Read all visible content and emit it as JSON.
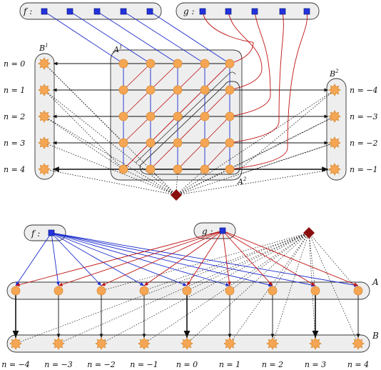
{
  "top_diagram": {
    "f_label": "f :",
    "g_label": "g :",
    "A1_label": "A",
    "A1_sup": "1",
    "A2_label": "A",
    "A2_sup": "2",
    "B1_label": "B",
    "B1_sup": "1",
    "B2_label": "B",
    "B2_sup": "2",
    "left_labels": [
      "n = 0",
      "n = 1",
      "n = 2",
      "n = 3",
      "n = 4"
    ],
    "right_labels": [
      "n = −4",
      "n = −3",
      "n = −2",
      "n = −1"
    ]
  },
  "bottom_diagram": {
    "f_label": "f :",
    "g_label": "g :",
    "A_label": "A",
    "B_label": "B",
    "n_labels": [
      "n = −4",
      "n = −3",
      "n = −2",
      "n = −1",
      "n = 0",
      "n = 1",
      "n = 2",
      "n = 3",
      "n = 4"
    ]
  },
  "colors": {
    "f_line": "#1a2bcc",
    "g_line": "#c01010",
    "node_fill": "#f5a654",
    "node_stroke": "#d98a30",
    "square_fill": "#2233dd",
    "diamond_fill": "#8b0e0e",
    "box_fill": "#eeeeee"
  }
}
